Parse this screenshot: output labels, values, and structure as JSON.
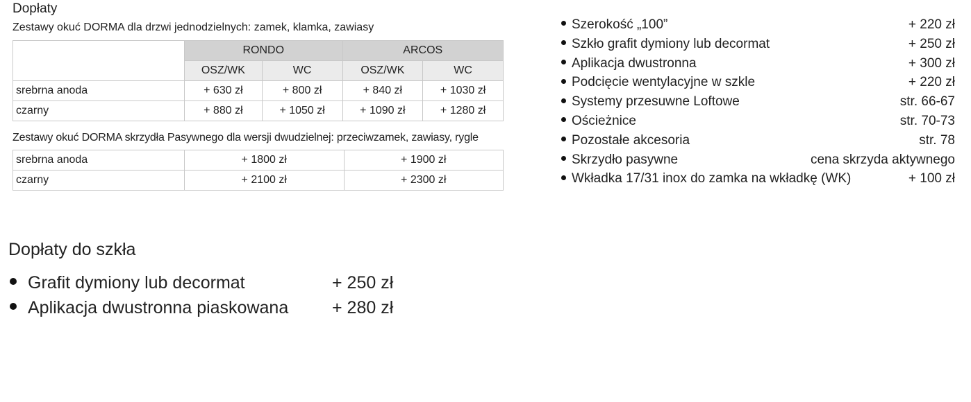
{
  "title": "Dopłaty",
  "table1": {
    "caption": "Zestawy okuć DORMA dla drzwi jednodzielnych: zamek, klamka, zawiasy",
    "groups": [
      "RONDO",
      "ARCOS"
    ],
    "subheaders": [
      "OSZ/WK",
      "WC",
      "OSZ/WK",
      "WC"
    ],
    "rows": [
      {
        "label": "srebrna anoda",
        "values": [
          "+ 630 zł",
          "+ 800 zł",
          "+ 840 zł",
          "+ 1030 zł"
        ]
      },
      {
        "label": "czarny",
        "values": [
          "+ 880 zł",
          "+ 1050 zł",
          "+ 1090 zł",
          "+ 1280 zł"
        ]
      }
    ]
  },
  "table2": {
    "caption": "Zestawy okuć DORMA skrzydła Pasywnego dla wersji dwudzielnej: przeciwzamek, zawiasy, rygle",
    "rows": [
      {
        "label": "srebrna anoda",
        "values": [
          "+ 1800 zł",
          "+ 1900 zł"
        ]
      },
      {
        "label": "czarny",
        "values": [
          "+ 2100 zł",
          "+ 2300 zł"
        ]
      }
    ]
  },
  "extras": [
    {
      "name": "Szerokość „100”",
      "value": "+ 220 zł"
    },
    {
      "name": "Szkło grafit dymiony lub decormat",
      "value": "+ 250 zł"
    },
    {
      "name": "Aplikacja dwustronna",
      "value": "+ 300 zł"
    },
    {
      "name": "Podcięcie wentylacyjne w szkle",
      "value": "+ 220 zł"
    },
    {
      "name": "Systemy przesuwne Loftowe",
      "value": "str. 66-67"
    },
    {
      "name": "Ościeżnice",
      "value": "str. 70-73"
    },
    {
      "name": "Pozostałe akcesoria",
      "value": "str. 78"
    },
    {
      "name": "Skrzydło pasywne",
      "value": "cena skrzyda aktywnego"
    },
    {
      "name": "Wkładka 17/31 inox do zamka na wkładkę (WK)",
      "value": "+ 100 zł"
    }
  ],
  "glass": {
    "title": "Dopłaty do szkła",
    "items": [
      {
        "name": "Grafit dymiony lub decormat",
        "value": "+ 250 zł"
      },
      {
        "name": "Aplikacja dwustronna piaskowana",
        "value": "+ 280 zł"
      }
    ]
  }
}
